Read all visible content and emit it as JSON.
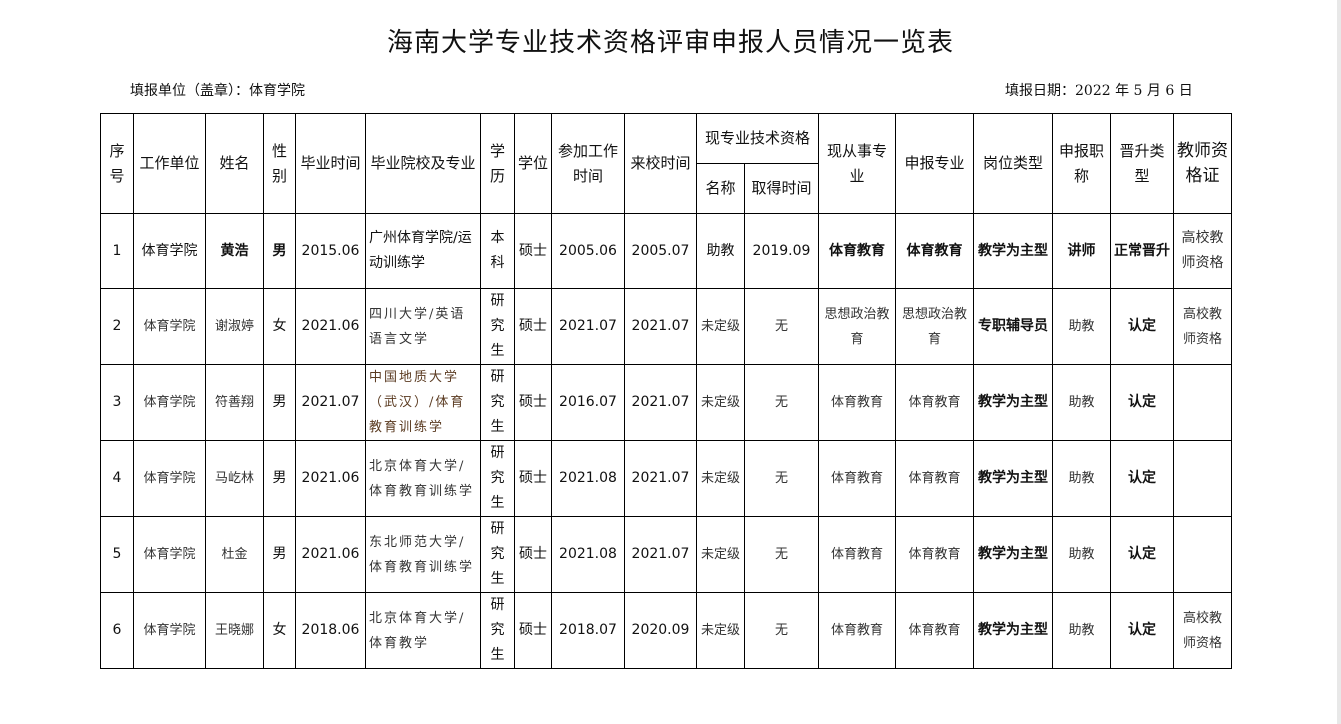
{
  "title": "海南大学专业技术资格评审申报人员情况一览表",
  "unit_label": "填报单位（盖章）：体育学院",
  "date_label": "填报日期：2022 年 5 月 6 日",
  "headers": {
    "seq": "序号",
    "unit": "工作单位",
    "name": "姓名",
    "gender": "性别",
    "grad_time": "毕业时间",
    "school": "毕业院校及专业",
    "edu": "学历",
    "degree": "学位",
    "work_time": "参加工作时间",
    "join_time": "来校时间",
    "current_title": "现专业技术资格",
    "title_name": "名称",
    "title_time": "取得时间",
    "current_major": "现从事专业",
    "apply_major": "申报专业",
    "post_type": "岗位类型",
    "apply_title": "申报职称",
    "promo_type": "晋升类型",
    "cert": "教师资格证"
  },
  "rows": [
    [
      "1",
      "体育学院",
      "黄浩",
      "男",
      "2015.06",
      "广州体育学院/运动训练学",
      "本科",
      "硕士",
      "2005.06",
      "2005.07",
      "助教",
      "2019.09",
      "体育教育",
      "体育教育",
      "教学为主型",
      "讲师",
      "正常晋升",
      "高校教师资格"
    ],
    [
      "2",
      "体育学院",
      "谢淑婷",
      "女",
      "2021.06",
      "四川大学/英语语言文学",
      "研究生",
      "硕士",
      "2021.07",
      "2021.07",
      "未定级",
      "无",
      "思想政治教育",
      "思想政治教育",
      "专职辅导员",
      "助教",
      "认定",
      "高校教师资格"
    ],
    [
      "3",
      "体育学院",
      "符善翔",
      "男",
      "2021.07",
      "中国地质大学（武汉）/体育教育训练学",
      "研究生",
      "硕士",
      "2016.07",
      "2021.07",
      "未定级",
      "无",
      "体育教育",
      "体育教育",
      "教学为主型",
      "助教",
      "认定",
      ""
    ],
    [
      "4",
      "体育学院",
      "马屹林",
      "男",
      "2021.06",
      "北京体育大学/体育教育训练学",
      "研究生",
      "硕士",
      "2021.08",
      "2021.07",
      "未定级",
      "无",
      "体育教育",
      "体育教育",
      "教学为主型",
      "助教",
      "认定",
      ""
    ],
    [
      "5",
      "体育学院",
      "杜金",
      "男",
      "2021.06",
      "东北师范大学/体育教育训练学",
      "研究生",
      "硕士",
      "2021.08",
      "2021.07",
      "未定级",
      "无",
      "体育教育",
      "体育教育",
      "教学为主型",
      "助教",
      "认定",
      ""
    ],
    [
      "6",
      "体育学院",
      "王晓娜",
      "女",
      "2018.06",
      "北京体育大学/体育教学",
      "研究生",
      "硕士",
      "2018.07",
      "2020.09",
      "未定级",
      "无",
      "体育教育",
      "体育教育",
      "教学为主型",
      "助教",
      "认定",
      "高校教师资格"
    ]
  ]
}
